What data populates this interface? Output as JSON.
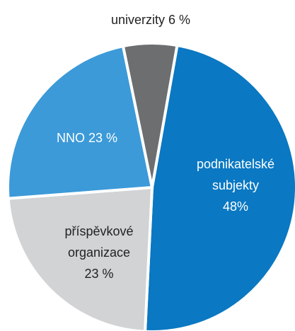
{
  "chart_data": {
    "type": "pie",
    "categories": [
      "podnikatelské subjekty",
      "příspěvkové organizace",
      "NNO",
      "univerzity"
    ],
    "values": [
      48,
      23,
      23,
      6
    ],
    "value_labels": [
      "48%",
      "23 %",
      "23 %",
      "6 %"
    ],
    "colors": [
      "#0a78c2",
      "#d1d3d4",
      "#3c9ad8",
      "#6d6e70"
    ]
  }
}
